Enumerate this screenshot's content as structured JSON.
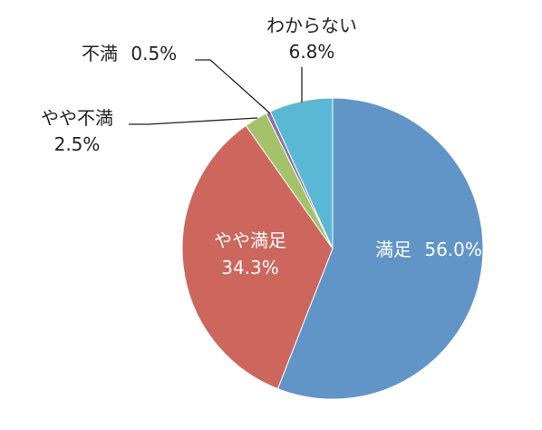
{
  "chart_data": {
    "type": "pie",
    "start_angle_deg": 0,
    "direction": "clockwise",
    "legend": "none",
    "slices": [
      {
        "label": "満足",
        "value": 56.0,
        "value_text": "56.0%",
        "color": "#6195C8"
      },
      {
        "label": "やや満足",
        "value": 34.3,
        "value_text": "34.3%",
        "color": "#CD665C"
      },
      {
        "label": "やや不満",
        "value": 2.5,
        "value_text": "2.5%",
        "color": "#A4C26A"
      },
      {
        "label": "不満",
        "value": 0.5,
        "value_text": "0.5%",
        "color": "#8C73AE"
      },
      {
        "label": "わからない",
        "value": 6.8,
        "value_text": "6.8%",
        "color": "#5BB8D4"
      }
    ]
  }
}
